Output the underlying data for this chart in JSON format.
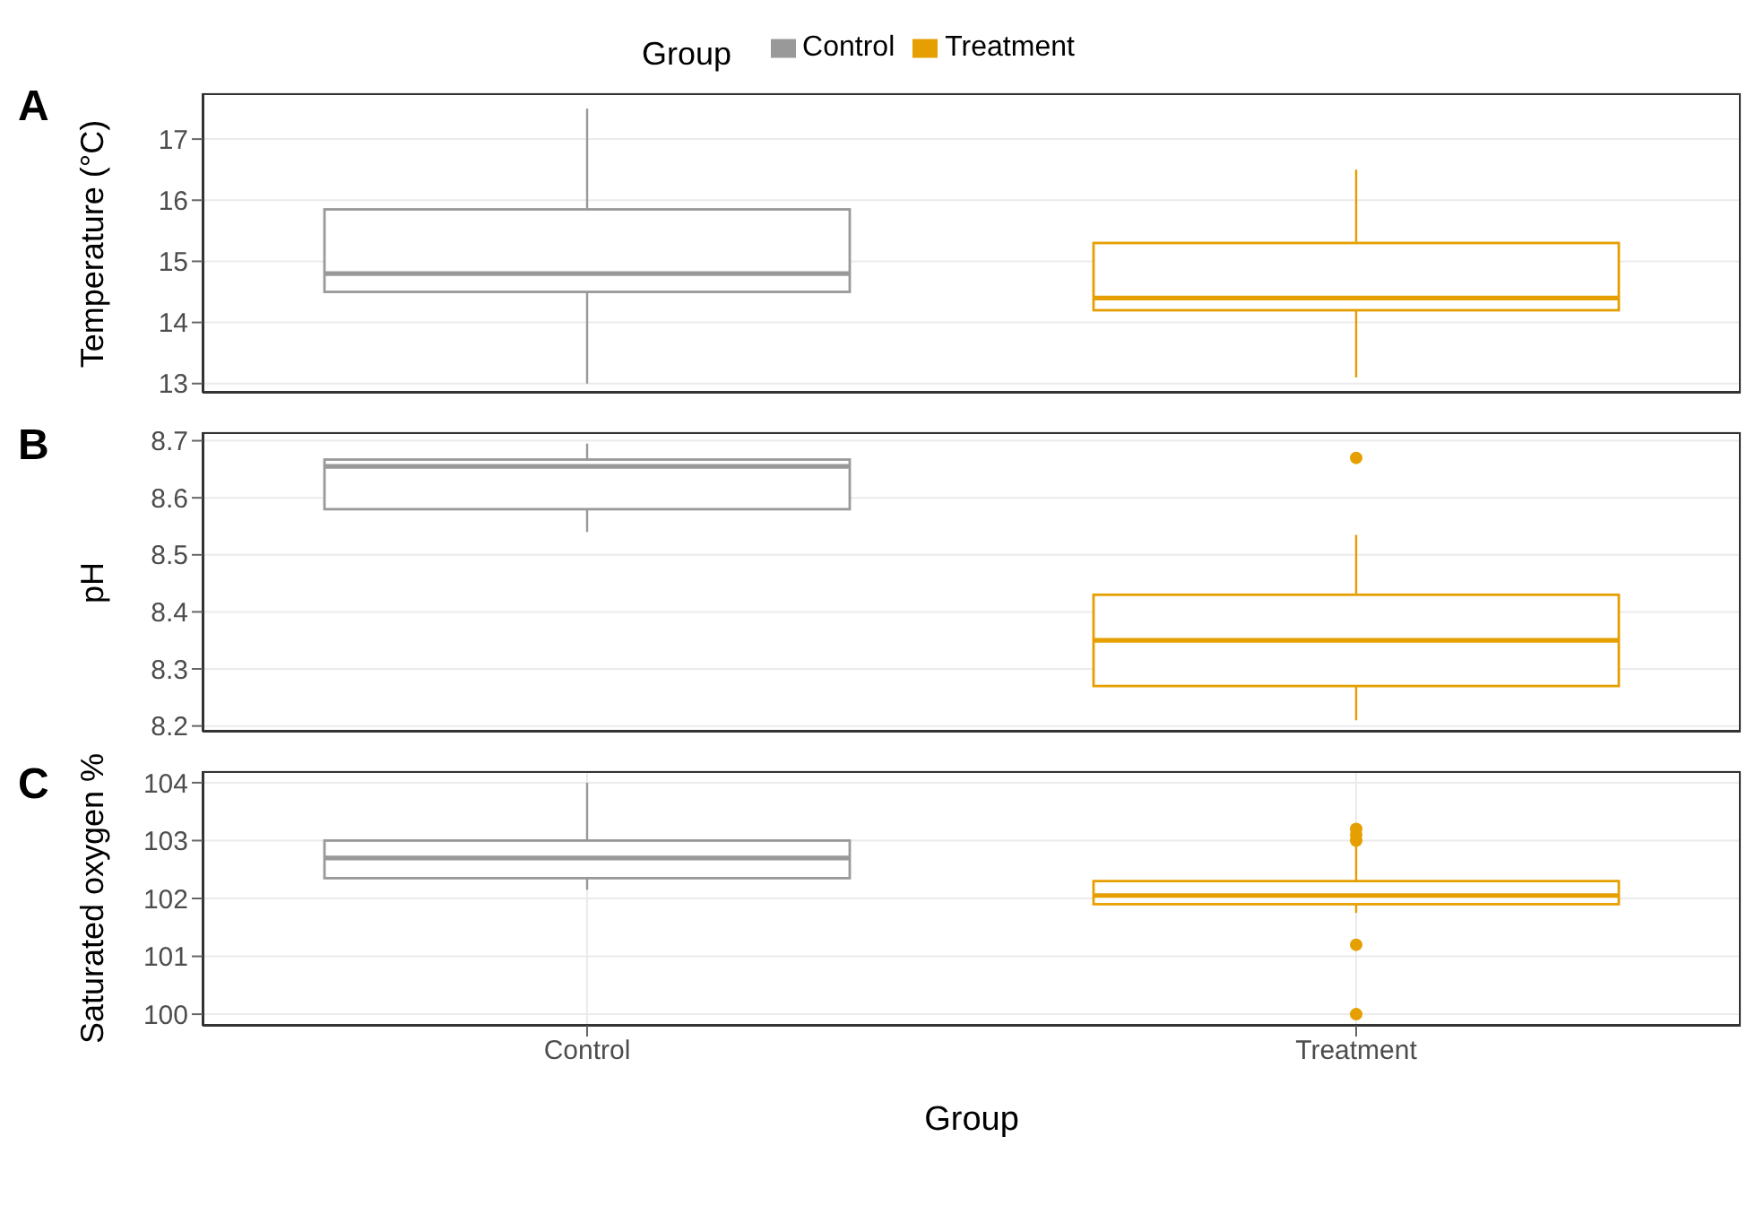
{
  "chart_data": [
    {
      "type": "box",
      "title": "A",
      "ylabel": "Temperature (°C)",
      "legend_title": "Group",
      "legend": "top",
      "categories": [
        null,
        null
      ],
      "ylim": [
        12.85,
        17.75
      ],
      "yticks": [
        13,
        14,
        15,
        16,
        17
      ],
      "grid": true,
      "tick_labels": "y",
      "series": [
        {
          "name": "Control",
          "color": "#999999",
          "boxes": [
            {
              "low": 13.0,
              "q1": 14.5,
              "median": 14.8,
              "q3": 15.85,
              "high": 17.5
            },
            null
          ]
        },
        {
          "name": "Treatment",
          "color": "#e69f00",
          "boxes": [
            null,
            {
              "low": 13.1,
              "q1": 14.2,
              "median": 14.4,
              "q3": 15.3,
              "high": 16.5
            }
          ]
        }
      ]
    },
    {
      "type": "box",
      "title": "B",
      "ylabel": "pH",
      "categories": [
        null,
        null
      ],
      "ylim": [
        8.19,
        8.715
      ],
      "yticks": [
        8.2,
        8.3,
        8.4,
        8.5,
        8.6,
        8.7
      ],
      "grid": true,
      "tick_labels": "y",
      "series": [
        {
          "color": "#999999",
          "boxes": [
            {
              "low": 8.54,
              "q1": 8.58,
              "median": 8.655,
              "q3": 8.667,
              "high": 8.695
            },
            null
          ]
        },
        {
          "color": "#e69f00",
          "boxes": [
            null,
            {
              "low": 8.21,
              "q1": 8.27,
              "median": 8.35,
              "q3": 8.43,
              "high": 8.535,
              "outliers": [
                8.67
              ]
            }
          ]
        }
      ]
    },
    {
      "type": "box",
      "title": "C",
      "ylabel": "Saturated oxygen %",
      "xlabel": "Group",
      "categories": [
        "Control",
        "Treatment"
      ],
      "ylim": [
        99.8,
        104.2
      ],
      "yticks": [
        100,
        101,
        102,
        103,
        104
      ],
      "grid": true,
      "series": [
        {
          "color": "#999999",
          "boxes": [
            {
              "low": 102.15,
              "q1": 102.35,
              "median": 102.7,
              "q3": 103.0,
              "high": 104.0
            },
            null
          ]
        },
        {
          "color": "#e69f00",
          "boxes": [
            null,
            {
              "low": 101.75,
              "q1": 101.9,
              "median": 102.05,
              "q3": 102.3,
              "high": 102.9,
              "outliers": [
                103.0,
                103.1,
                103.2,
                101.2,
                100.0
              ]
            }
          ]
        }
      ]
    }
  ]
}
